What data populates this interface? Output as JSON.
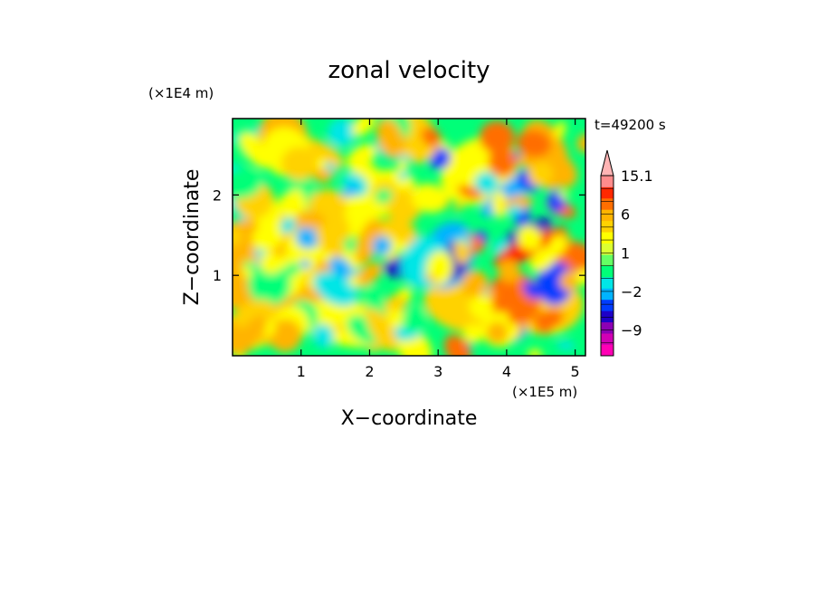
{
  "chart_data": {
    "type": "heatmap",
    "title": "zonal velocity",
    "xlabel": "X−coordinate",
    "ylabel": "Z−coordinate",
    "x_unit_label": "(×1E5 m)",
    "y_unit_label": "(×1E4 m)",
    "time_label": "t=49200 s",
    "xlim": [
      0,
      5.15
    ],
    "ylim": [
      0,
      2.95
    ],
    "x_ticks": [
      1,
      2,
      3,
      4,
      5
    ],
    "y_ticks": [
      1,
      2
    ],
    "colorbar": {
      "levels": [
        -15,
        -12,
        -9,
        -6,
        -4,
        -2,
        -1,
        0,
        1,
        2,
        4,
        6,
        9,
        12,
        15.1
      ],
      "labels": [
        {
          "value": 15.1,
          "text": "15.1"
        },
        {
          "value": 6,
          "text": "6"
        },
        {
          "value": 1,
          "text": "1"
        },
        {
          "value": -2,
          "text": "−2"
        },
        {
          "value": -9,
          "text": "−9"
        }
      ],
      "colors": [
        "#ff00b4",
        "#d200b4",
        "#8c00b4",
        "#1e00c8",
        "#003cff",
        "#00b4ff",
        "#00e6e6",
        "#00ff78",
        "#64ff64",
        "#dcff32",
        "#ffff00",
        "#ffd200",
        "#ffb400",
        "#ff6e00",
        "#ff2800",
        "#ff8c8c",
        "#ffb4b4"
      ],
      "extend": "max"
    }
  }
}
